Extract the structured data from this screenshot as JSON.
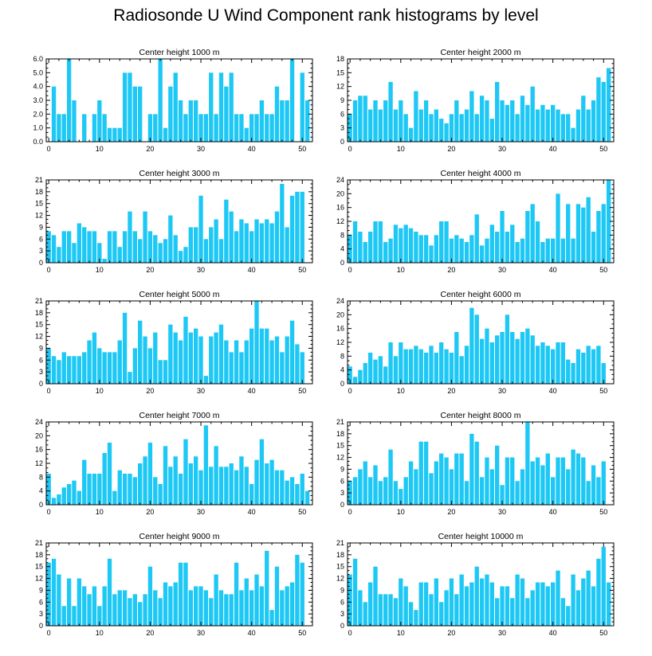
{
  "title": "Radiosonde U Wind Component rank histograms by level",
  "bar_color": "#1ec8f5",
  "chart_data": [
    {
      "type": "bar",
      "title": "Center height 1000 m",
      "ylim": [
        0,
        6
      ],
      "yticks": [
        0,
        1,
        2,
        3,
        4,
        5,
        6
      ],
      "ytick_labels": [
        "0.0",
        "1.0",
        "2.0",
        "3.0",
        "4.0",
        "5.0",
        "6.0"
      ],
      "xlim": [
        -0.5,
        52
      ],
      "xticks": [
        0,
        10,
        20,
        30,
        40,
        50
      ],
      "xtick_labels": [
        "0",
        "10",
        "20",
        "30",
        "40",
        "50"
      ],
      "values": [
        0,
        4,
        2,
        2,
        6,
        3,
        0,
        2,
        0,
        2,
        3,
        2,
        1,
        1,
        1,
        5,
        5,
        4,
        4,
        0,
        2,
        2,
        6,
        1,
        4,
        5,
        3,
        2,
        3,
        3,
        2,
        2,
        5,
        2,
        5,
        4,
        5,
        2,
        2,
        1,
        2,
        2,
        3,
        2,
        2,
        4,
        3,
        3,
        6,
        0,
        5,
        3
      ]
    },
    {
      "type": "bar",
      "title": "Center height 2000 m",
      "ylim": [
        0,
        18
      ],
      "yticks": [
        0,
        3,
        6,
        9,
        12,
        15,
        18
      ],
      "ytick_labels": [
        "0",
        "3",
        "6",
        "9",
        "12",
        "15",
        "18"
      ],
      "xlim": [
        -0.5,
        52
      ],
      "xticks": [
        0,
        10,
        20,
        30,
        40,
        50
      ],
      "xtick_labels": [
        "0",
        "10",
        "20",
        "30",
        "40",
        "50"
      ],
      "values": [
        6,
        9,
        10,
        10,
        7,
        9,
        7,
        9,
        13,
        7,
        9,
        6,
        3,
        11,
        7,
        9,
        6,
        7,
        5,
        4,
        6,
        9,
        6,
        7,
        11,
        6,
        10,
        9,
        5,
        13,
        9,
        8,
        9,
        6,
        10,
        8,
        12,
        7,
        8,
        7,
        8,
        7,
        6,
        6,
        3,
        7,
        10,
        7,
        9,
        14,
        13,
        16
      ]
    },
    {
      "type": "bar",
      "title": "Center height 3000 m",
      "ylim": [
        0,
        21
      ],
      "yticks": [
        0,
        3,
        6,
        9,
        12,
        15,
        18,
        21
      ],
      "ytick_labels": [
        "0",
        "3",
        "6",
        "9",
        "12",
        "15",
        "18",
        "21"
      ],
      "xlim": [
        -0.5,
        52
      ],
      "xticks": [
        0,
        10,
        20,
        30,
        40,
        50
      ],
      "xtick_labels": [
        "0",
        "10",
        "20",
        "30",
        "40",
        "50"
      ],
      "values": [
        8,
        7,
        4,
        8,
        8,
        5,
        10,
        9,
        8,
        8,
        5,
        1,
        8,
        8,
        4,
        8,
        13,
        8,
        6,
        13,
        8,
        7,
        5,
        6,
        12,
        7,
        3,
        4,
        9,
        9,
        17,
        6,
        9,
        11,
        6,
        16,
        13,
        8,
        11,
        10,
        8,
        11,
        10,
        11,
        10,
        13,
        20,
        9,
        17,
        18,
        18,
        0
      ]
    },
    {
      "type": "bar",
      "title": "Center height 4000 m",
      "ylim": [
        0,
        24
      ],
      "yticks": [
        0,
        4,
        8,
        12,
        16,
        20,
        24
      ],
      "ytick_labels": [
        "0",
        "4",
        "8",
        "12",
        "16",
        "20",
        "24"
      ],
      "xlim": [
        -0.5,
        52
      ],
      "xticks": [
        0,
        10,
        20,
        30,
        40,
        50
      ],
      "xtick_labels": [
        "0",
        "10",
        "20",
        "30",
        "40",
        "50"
      ],
      "values": [
        8,
        12,
        9,
        6,
        9,
        12,
        12,
        6,
        7,
        11,
        10,
        11,
        10,
        9,
        8,
        8,
        5,
        8,
        12,
        12,
        7,
        8,
        7,
        6,
        8,
        14,
        5,
        7,
        11,
        9,
        15,
        9,
        11,
        6,
        7,
        15,
        17,
        12,
        6,
        7,
        7,
        20,
        7,
        17,
        7,
        17,
        16,
        19,
        9,
        15,
        17,
        24
      ]
    },
    {
      "type": "bar",
      "title": "Center height 5000 m",
      "ylim": [
        0,
        21
      ],
      "yticks": [
        0,
        3,
        6,
        9,
        12,
        15,
        18,
        21
      ],
      "ytick_labels": [
        "0",
        "3",
        "6",
        "9",
        "12",
        "15",
        "18",
        "21"
      ],
      "xlim": [
        -0.5,
        52
      ],
      "xticks": [
        0,
        10,
        20,
        30,
        40,
        50
      ],
      "xtick_labels": [
        "0",
        "10",
        "20",
        "30",
        "40",
        "50"
      ],
      "values": [
        9,
        7,
        6,
        8,
        7,
        7,
        7,
        8,
        11,
        13,
        9,
        8,
        8,
        8,
        11,
        18,
        3,
        9,
        16,
        12,
        9,
        13,
        6,
        6,
        15,
        13,
        11,
        17,
        13,
        14,
        12,
        2,
        12,
        13,
        15,
        11,
        8,
        11,
        8,
        11,
        14,
        21,
        14,
        14,
        11,
        12,
        8,
        12,
        16,
        10,
        8,
        0
      ]
    },
    {
      "type": "bar",
      "title": "Center height 6000 m",
      "ylim": [
        0,
        24
      ],
      "yticks": [
        0,
        4,
        8,
        12,
        16,
        20,
        24
      ],
      "ytick_labels": [
        "0",
        "4",
        "8",
        "12",
        "16",
        "20",
        "24"
      ],
      "xlim": [
        -0.5,
        52
      ],
      "xticks": [
        0,
        10,
        20,
        30,
        40,
        50
      ],
      "xtick_labels": [
        "0",
        "10",
        "20",
        "30",
        "40",
        "50"
      ],
      "values": [
        5,
        2,
        4,
        6,
        9,
        7,
        8,
        5,
        12,
        8,
        12,
        10,
        10,
        11,
        10,
        9,
        11,
        9,
        12,
        10,
        9,
        15,
        8,
        11,
        22,
        20,
        13,
        16,
        12,
        14,
        15,
        20,
        15,
        13,
        15,
        16,
        14,
        11,
        12,
        11,
        10,
        12,
        12,
        7,
        6,
        10,
        9,
        11,
        10,
        11,
        6,
        0
      ]
    },
    {
      "type": "bar",
      "title": "Center height 7000 m",
      "ylim": [
        0,
        24
      ],
      "yticks": [
        0,
        4,
        8,
        12,
        16,
        20,
        24
      ],
      "ytick_labels": [
        "0",
        "4",
        "8",
        "12",
        "16",
        "20",
        "24"
      ],
      "xlim": [
        -0.5,
        52
      ],
      "xticks": [
        0,
        10,
        20,
        30,
        40,
        50
      ],
      "xtick_labels": [
        "0",
        "10",
        "20",
        "30",
        "40",
        "50"
      ],
      "values": [
        9,
        2,
        3,
        5,
        6,
        7,
        4,
        13,
        9,
        9,
        9,
        15,
        18,
        4,
        10,
        9,
        9,
        8,
        12,
        14,
        18,
        8,
        6,
        17,
        11,
        14,
        9,
        19,
        12,
        14,
        10,
        23,
        11,
        17,
        11,
        11,
        12,
        10,
        14,
        11,
        6,
        13,
        19,
        12,
        13,
        10,
        10,
        7,
        8,
        6,
        9,
        4
      ]
    },
    {
      "type": "bar",
      "title": "Center height 8000 m",
      "ylim": [
        0,
        21
      ],
      "yticks": [
        0,
        3,
        6,
        9,
        12,
        15,
        18,
        21
      ],
      "ytick_labels": [
        "0",
        "3",
        "6",
        "9",
        "12",
        "15",
        "18",
        "21"
      ],
      "xlim": [
        -0.5,
        52
      ],
      "xticks": [
        0,
        10,
        20,
        30,
        40,
        50
      ],
      "xtick_labels": [
        "0",
        "10",
        "20",
        "30",
        "40",
        "50"
      ],
      "values": [
        6,
        7,
        9,
        11,
        7,
        10,
        6,
        7,
        14,
        6,
        4,
        7,
        11,
        9,
        16,
        16,
        8,
        11,
        13,
        12,
        9,
        13,
        13,
        6,
        18,
        16,
        7,
        12,
        9,
        15,
        5,
        12,
        12,
        6,
        9,
        21,
        11,
        12,
        10,
        13,
        7,
        12,
        12,
        9,
        14,
        13,
        12,
        6,
        10,
        7,
        11,
        0
      ]
    },
    {
      "type": "bar",
      "title": "Center height 9000 m",
      "ylim": [
        0,
        21
      ],
      "yticks": [
        0,
        3,
        6,
        9,
        12,
        15,
        18,
        21
      ],
      "ytick_labels": [
        "0",
        "3",
        "6",
        "9",
        "12",
        "15",
        "18",
        "21"
      ],
      "xlim": [
        -0.5,
        52
      ],
      "xticks": [
        0,
        10,
        20,
        30,
        40,
        50
      ],
      "xtick_labels": [
        "0",
        "10",
        "20",
        "30",
        "40",
        "50"
      ],
      "values": [
        16,
        17,
        13,
        5,
        12,
        5,
        12,
        10,
        8,
        10,
        5,
        10,
        17,
        8,
        9,
        9,
        7,
        8,
        6,
        8,
        15,
        9,
        7,
        11,
        10,
        11,
        16,
        16,
        9,
        10,
        10,
        9,
        7,
        13,
        9,
        8,
        8,
        16,
        9,
        12,
        9,
        13,
        10,
        19,
        4,
        15,
        9,
        10,
        11,
        18,
        16,
        0
      ]
    },
    {
      "type": "bar",
      "title": "Center height 10000 m",
      "ylim": [
        0,
        21
      ],
      "yticks": [
        0,
        3,
        6,
        9,
        12,
        15,
        18,
        21
      ],
      "ytick_labels": [
        "0",
        "3",
        "6",
        "9",
        "12",
        "15",
        "18",
        "21"
      ],
      "xlim": [
        -0.5,
        52
      ],
      "xticks": [
        0,
        10,
        20,
        30,
        40,
        50
      ],
      "xtick_labels": [
        "0",
        "10",
        "20",
        "30",
        "40",
        "50"
      ],
      "values": [
        13,
        17,
        9,
        6,
        11,
        15,
        8,
        8,
        8,
        7,
        12,
        10,
        6,
        4,
        11,
        11,
        8,
        12,
        6,
        9,
        12,
        8,
        13,
        10,
        11,
        15,
        12,
        13,
        11,
        7,
        10,
        10,
        7,
        13,
        12,
        7,
        9,
        11,
        11,
        10,
        11,
        14,
        7,
        5,
        13,
        9,
        12,
        14,
        10,
        17,
        20,
        11
      ]
    }
  ]
}
